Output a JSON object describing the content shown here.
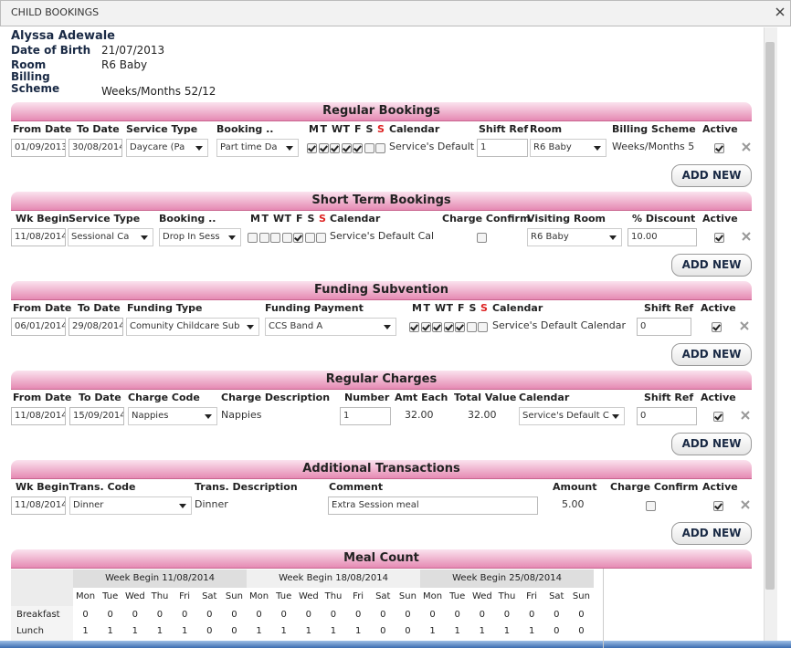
{
  "dialog_title": "CHILD BOOKINGS",
  "child": {
    "name": "Alyssa Adewale",
    "fields": [
      {
        "label": "Date of Birth",
        "value": "21/07/2013"
      },
      {
        "label": "Room",
        "value": "R6 Baby"
      },
      {
        "label": "Billing Scheme",
        "value": "Weeks/Months 52/12"
      }
    ]
  },
  "sections": [
    {
      "title": "Regular Bookings",
      "headers": [
        "From Date",
        "To Date",
        "Service Type",
        "Booking ..",
        "Calendar",
        "Shift Ref",
        "Room",
        "Billing Scheme",
        "Active"
      ],
      "days": [
        "M",
        "T",
        "W",
        "T",
        "F",
        "S",
        "S"
      ],
      "day_checks": [
        true,
        true,
        true,
        true,
        true,
        false,
        false
      ],
      "row": [
        "01/09/2013",
        "30/08/2014",
        "Daycare (Pa",
        "Part time Da",
        "Service's Default",
        "1",
        "R6 Baby",
        "Weeks/Months 5",
        true
      ],
      "button": "ADD NEW"
    },
    {
      "title": "Short Term Bookings",
      "headers": [
        "Wk Begin",
        "Service Type",
        "Booking ..",
        "Calendar",
        "Charge Confirm",
        "Visiting Room",
        "% Discount",
        "Active"
      ],
      "days": [
        "M",
        "T",
        "W",
        "T",
        "F",
        "S",
        "S"
      ],
      "day_checks": [
        false,
        false,
        false,
        false,
        true,
        false,
        false
      ],
      "row": [
        "11/08/2014",
        "Sessional Ca",
        "Drop In Sess",
        "Service's Default Cal",
        false,
        "R6 Baby",
        "10.00",
        true
      ],
      "button": "ADD NEW"
    },
    {
      "title": "Funding Subvention",
      "headers": [
        "From Date",
        "To Date",
        "Funding Type",
        "Funding Payment",
        "Calendar",
        "Shift Ref",
        "Active"
      ],
      "days": [
        "M",
        "T",
        "W",
        "T",
        "F",
        "S",
        "S"
      ],
      "day_checks": [
        true,
        true,
        true,
        true,
        true,
        false,
        false
      ],
      "row": [
        "06/01/2014",
        "29/08/2014",
        "Comunity Childcare Sub",
        "CCS Band A",
        "Service's Default Calendar",
        "0",
        true
      ],
      "button": "ADD NEW"
    },
    {
      "title": "Regular Charges",
      "headers": [
        "From Date",
        "To Date",
        "Charge Code",
        "Charge Description",
        "Number",
        "Amt Each",
        "Total Value",
        "Calendar",
        "Shift Ref",
        "Active"
      ],
      "row": [
        "11/08/2014",
        "15/09/2014",
        "Nappies",
        "Nappies",
        "1",
        "32.00",
        "32.00",
        "Service's Default C",
        "0",
        true
      ],
      "button": "ADD NEW"
    },
    {
      "title": "Additional Transactions",
      "headers": [
        "Wk Begin",
        "Trans. Code",
        "Trans. Description",
        "Comment",
        "Amount",
        "Charge Confirm",
        "Active"
      ],
      "row": [
        "11/08/2014",
        "Dinner",
        "Dinner",
        "Extra Session meal",
        "5.00",
        false,
        true
      ],
      "button": "ADD NEW"
    }
  ],
  "meal_count": {
    "title": "Meal Count",
    "weeks": [
      "Week Begin 11/08/2014",
      "Week Begin 18/08/2014",
      "Week Begin 25/08/2014"
    ],
    "days": [
      "Mon",
      "Tue",
      "Wed",
      "Thu",
      "Fri",
      "Sat",
      "Sun"
    ],
    "rows": [
      {
        "label": "Breakfast",
        "values": [
          0,
          0,
          0,
          0,
          0,
          0,
          0,
          0,
          0,
          0,
          0,
          0,
          0,
          0,
          0,
          0,
          0,
          0,
          0,
          0,
          0
        ]
      },
      {
        "label": "Lunch",
        "values": [
          1,
          1,
          1,
          1,
          1,
          0,
          0,
          1,
          1,
          1,
          1,
          1,
          0,
          0,
          1,
          1,
          1,
          1,
          1,
          0,
          0
        ]
      }
    ]
  }
}
